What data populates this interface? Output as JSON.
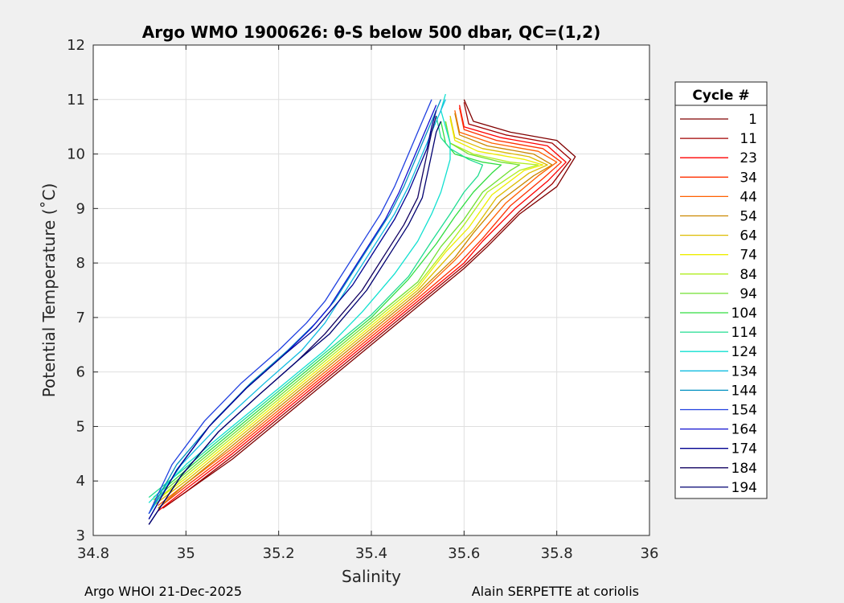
{
  "chart_data": {
    "type": "line",
    "title": "Argo WMO 1900626: θ-S below 500 dbar,  QC=(1,2)",
    "xlabel": "Salinity",
    "ylabel": "Potential Temperature (˚C)",
    "xlim": [
      34.8,
      36
    ],
    "ylim": [
      3,
      12
    ],
    "xticks": [
      "34.8",
      "35",
      "35.2",
      "35.4",
      "35.6",
      "35.8",
      "36"
    ],
    "yticks": [
      "3",
      "4",
      "5",
      "6",
      "7",
      "8",
      "9",
      "10",
      "11",
      "12"
    ],
    "grid": true,
    "legend": {
      "title": "Cycle #",
      "position": "right",
      "entries": [
        "1",
        "11",
        "23",
        "34",
        "44",
        "54",
        "64",
        "74",
        "84",
        "94",
        "104",
        "114",
        "124",
        "134",
        "144",
        "154",
        "164",
        "174",
        "184",
        "194"
      ]
    },
    "series": [
      {
        "cycle": 1,
        "color": "#800000",
        "x": [
          34.95,
          35.0,
          35.1,
          35.2,
          35.3,
          35.4,
          35.5,
          35.6,
          35.65,
          35.72,
          35.8,
          35.84,
          35.8,
          35.7,
          35.62,
          35.6
        ],
        "y": [
          3.5,
          3.8,
          4.4,
          5.1,
          5.8,
          6.5,
          7.2,
          7.9,
          8.3,
          8.9,
          9.4,
          9.95,
          10.25,
          10.4,
          10.6,
          11.0
        ]
      },
      {
        "cycle": 11,
        "color": "#a00000",
        "x": [
          34.95,
          35.0,
          35.1,
          35.2,
          35.3,
          35.4,
          35.5,
          35.6,
          35.65,
          35.72,
          35.79,
          35.83,
          35.79,
          35.69,
          35.61,
          35.6
        ],
        "y": [
          3.5,
          3.8,
          4.45,
          5.15,
          5.85,
          6.55,
          7.25,
          7.95,
          8.35,
          8.95,
          9.45,
          9.9,
          10.2,
          10.35,
          10.55,
          10.95
        ]
      },
      {
        "cycle": 23,
        "color": "#ff0000",
        "x": [
          34.94,
          35.0,
          35.1,
          35.2,
          35.3,
          35.4,
          35.5,
          35.6,
          35.64,
          35.71,
          35.78,
          35.82,
          35.78,
          35.68,
          35.6,
          35.59
        ],
        "y": [
          3.45,
          3.85,
          4.5,
          5.2,
          5.9,
          6.6,
          7.3,
          8.0,
          8.4,
          9.0,
          9.5,
          9.85,
          10.15,
          10.3,
          10.5,
          10.9
        ]
      },
      {
        "cycle": 34,
        "color": "#ff3000",
        "x": [
          34.94,
          35.0,
          35.1,
          35.2,
          35.3,
          35.4,
          35.5,
          35.59,
          35.64,
          35.7,
          35.77,
          35.81,
          35.77,
          35.67,
          35.6,
          35.59
        ],
        "y": [
          3.5,
          3.9,
          4.55,
          5.25,
          5.95,
          6.65,
          7.35,
          8.0,
          8.45,
          9.05,
          9.55,
          9.85,
          10.1,
          10.25,
          10.45,
          10.85
        ]
      },
      {
        "cycle": 44,
        "color": "#ff6000",
        "x": [
          34.94,
          35.0,
          35.1,
          35.2,
          35.3,
          35.4,
          35.5,
          35.58,
          35.63,
          35.69,
          35.76,
          35.8,
          35.76,
          35.66,
          35.59,
          35.58
        ],
        "y": [
          3.55,
          3.95,
          4.6,
          5.3,
          6.0,
          6.7,
          7.4,
          8.05,
          8.5,
          9.1,
          9.6,
          9.85,
          10.05,
          10.2,
          10.4,
          10.8
        ]
      },
      {
        "cycle": 54,
        "color": "#cc8800",
        "x": [
          34.94,
          35.0,
          35.1,
          35.2,
          35.3,
          35.4,
          35.5,
          35.58,
          35.62,
          35.68,
          35.75,
          35.79,
          35.75,
          35.65,
          35.59,
          35.58
        ],
        "y": [
          3.5,
          3.95,
          4.65,
          5.35,
          6.05,
          6.75,
          7.45,
          8.1,
          8.55,
          9.15,
          9.6,
          9.8,
          10.0,
          10.15,
          10.35,
          10.75
        ]
      },
      {
        "cycle": 64,
        "color": "#ddbb00",
        "x": [
          34.93,
          35.0,
          35.1,
          35.2,
          35.3,
          35.4,
          35.5,
          35.57,
          35.62,
          35.67,
          35.74,
          35.78,
          35.74,
          35.64,
          35.58,
          35.57
        ],
        "y": [
          3.55,
          4.0,
          4.7,
          5.4,
          6.1,
          6.8,
          7.5,
          8.15,
          8.6,
          9.2,
          9.65,
          9.8,
          9.95,
          10.1,
          10.3,
          10.7
        ]
      },
      {
        "cycle": 74,
        "color": "#eeee00",
        "x": [
          34.93,
          35.0,
          35.1,
          35.2,
          35.3,
          35.4,
          35.5,
          35.56,
          35.61,
          35.66,
          35.73,
          35.77,
          35.73,
          35.63,
          35.58,
          35.57
        ],
        "y": [
          3.6,
          4.05,
          4.75,
          5.45,
          6.15,
          6.85,
          7.55,
          8.2,
          8.65,
          9.25,
          9.7,
          9.8,
          9.9,
          10.05,
          10.25,
          10.65
        ]
      },
      {
        "cycle": 84,
        "color": "#b0ee20",
        "x": [
          34.93,
          35.0,
          35.1,
          35.2,
          35.3,
          35.4,
          35.5,
          35.56,
          35.6,
          35.65,
          35.72,
          35.76,
          35.7,
          35.62,
          35.57,
          35.56
        ],
        "y": [
          3.6,
          4.1,
          4.8,
          5.5,
          6.2,
          6.9,
          7.6,
          8.25,
          8.7,
          9.3,
          9.7,
          9.8,
          9.85,
          10.0,
          10.2,
          10.6
        ]
      },
      {
        "cycle": 94,
        "color": "#70e030",
        "x": [
          34.93,
          35.0,
          35.1,
          35.2,
          35.3,
          35.4,
          35.5,
          35.55,
          35.6,
          35.64,
          35.7,
          35.72,
          35.68,
          35.61,
          35.57,
          35.56
        ],
        "y": [
          3.65,
          4.15,
          4.85,
          5.55,
          6.25,
          6.95,
          7.65,
          8.3,
          8.8,
          9.3,
          9.7,
          9.8,
          9.85,
          10.0,
          10.2,
          10.6
        ]
      },
      {
        "cycle": 104,
        "color": "#30dd40",
        "x": [
          34.93,
          35.0,
          35.1,
          35.2,
          35.3,
          35.4,
          35.48,
          35.54,
          35.58,
          35.62,
          35.66,
          35.68,
          35.64,
          35.58,
          35.56,
          35.55
        ],
        "y": [
          3.7,
          4.2,
          4.9,
          5.6,
          6.3,
          7.0,
          7.7,
          8.35,
          8.85,
          9.3,
          9.65,
          9.8,
          9.85,
          10.0,
          10.2,
          10.6
        ]
      },
      {
        "cycle": 114,
        "color": "#20dd90",
        "x": [
          34.92,
          35.0,
          35.1,
          35.2,
          35.3,
          35.4,
          35.48,
          35.53,
          35.57,
          35.6,
          35.63,
          35.64,
          35.61,
          35.57,
          35.55,
          35.54
        ],
        "y": [
          3.7,
          4.25,
          4.95,
          5.65,
          6.35,
          7.05,
          7.75,
          8.4,
          8.9,
          9.3,
          9.6,
          9.8,
          9.9,
          10.1,
          10.3,
          10.7
        ]
      },
      {
        "cycle": 124,
        "color": "#10e0d0",
        "x": [
          34.92,
          35.0,
          35.1,
          35.2,
          35.3,
          35.38,
          35.45,
          35.5,
          35.53,
          35.55,
          35.56,
          35.57,
          35.57,
          35.56,
          35.55,
          35.56
        ],
        "y": [
          3.6,
          4.3,
          5.0,
          5.7,
          6.4,
          7.1,
          7.8,
          8.4,
          8.9,
          9.3,
          9.6,
          9.9,
          10.2,
          10.5,
          10.8,
          11.1
        ]
      },
      {
        "cycle": 134,
        "color": "#10bbe0",
        "x": [
          34.92,
          34.99,
          35.08,
          35.17,
          35.25,
          35.3,
          35.33,
          35.36,
          35.39,
          35.42,
          35.45,
          35.48,
          35.5,
          35.52,
          35.54,
          35.56
        ],
        "y": [
          3.4,
          4.3,
          5.1,
          5.8,
          6.4,
          6.9,
          7.3,
          7.7,
          8.1,
          8.5,
          8.9,
          9.4,
          9.8,
          10.2,
          10.6,
          11.0
        ]
      },
      {
        "cycle": 144,
        "color": "#0090c0",
        "x": [
          34.92,
          34.98,
          35.06,
          35.14,
          35.22,
          35.28,
          35.32,
          35.35,
          35.38,
          35.41,
          35.44,
          35.47,
          35.49,
          35.51,
          35.53,
          35.55
        ],
        "y": [
          3.4,
          4.3,
          5.1,
          5.8,
          6.4,
          6.9,
          7.3,
          7.7,
          8.1,
          8.5,
          8.9,
          9.4,
          9.8,
          10.2,
          10.6,
          11.0
        ]
      },
      {
        "cycle": 154,
        "color": "#2040e0",
        "x": [
          34.92,
          34.97,
          35.04,
          35.12,
          35.2,
          35.26,
          35.3,
          35.33,
          35.36,
          35.39,
          35.42,
          35.45,
          35.47,
          35.49,
          35.51,
          35.53
        ],
        "y": [
          3.4,
          4.3,
          5.1,
          5.8,
          6.4,
          6.9,
          7.3,
          7.7,
          8.1,
          8.5,
          8.9,
          9.4,
          9.8,
          10.2,
          10.6,
          11.0
        ]
      },
      {
        "cycle": 164,
        "color": "#1010d0",
        "x": [
          34.92,
          34.98,
          35.05,
          35.13,
          35.21,
          35.27,
          35.31,
          35.34,
          35.37,
          35.4,
          35.43,
          35.46,
          35.48,
          35.5,
          35.52,
          35.54
        ],
        "y": [
          3.3,
          4.2,
          5.0,
          5.7,
          6.3,
          6.8,
          7.2,
          7.6,
          8.0,
          8.4,
          8.8,
          9.3,
          9.7,
          10.1,
          10.5,
          10.9
        ]
      },
      {
        "cycle": 174,
        "color": "#000090",
        "x": [
          34.92,
          34.98,
          35.05,
          35.13,
          35.21,
          35.28,
          35.32,
          35.36,
          35.39,
          35.42,
          35.45,
          35.48,
          35.5,
          35.52,
          35.53,
          35.54
        ],
        "y": [
          3.3,
          4.2,
          5.0,
          5.7,
          6.3,
          6.8,
          7.2,
          7.6,
          8.0,
          8.4,
          8.8,
          9.3,
          9.7,
          10.1,
          10.5,
          10.8
        ]
      },
      {
        "cycle": 184,
        "color": "#100060",
        "x": [
          34.92,
          34.99,
          35.07,
          35.16,
          35.24,
          35.3,
          35.34,
          35.38,
          35.41,
          35.44,
          35.47,
          35.5,
          35.51,
          35.52,
          35.53,
          35.54
        ],
        "y": [
          3.2,
          4.1,
          4.9,
          5.6,
          6.2,
          6.7,
          7.1,
          7.5,
          7.9,
          8.3,
          8.7,
          9.2,
          9.6,
          10.0,
          10.4,
          10.7
        ]
      },
      {
        "cycle": 194,
        "color": "#000070",
        "x": [
          34.92,
          34.99,
          35.07,
          35.16,
          35.24,
          35.31,
          35.35,
          35.39,
          35.42,
          35.45,
          35.48,
          35.51,
          35.52,
          35.53,
          35.54,
          35.55
        ],
        "y": [
          3.2,
          4.1,
          4.9,
          5.6,
          6.2,
          6.7,
          7.1,
          7.5,
          7.9,
          8.3,
          8.7,
          9.2,
          9.6,
          10.0,
          10.4,
          10.6
        ]
      }
    ]
  },
  "footer": {
    "left": "Argo WHOI 21-Dec-2025",
    "right": "Alain SERPETTE at coriolis"
  }
}
